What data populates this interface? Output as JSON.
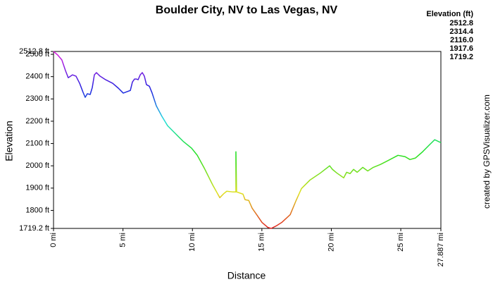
{
  "chart_data": {
    "type": "line",
    "title": "Boulder City, NV to Las Vegas, NV",
    "x_label": "Distance",
    "y_label": "Elevation",
    "credit": "created by GPSVisualizer.com",
    "x": [
      0,
      0.3,
      0.6,
      0.86,
      1.06,
      1.37,
      1.62,
      1.88,
      2.13,
      2.28,
      2.43,
      2.64,
      2.79,
      2.94,
      3.09,
      3.35,
      3.75,
      4.26,
      4.67,
      5.02,
      5.27,
      5.53,
      5.68,
      5.83,
      5.98,
      6.09,
      6.24,
      6.39,
      6.54,
      6.69,
      6.9,
      7.1,
      7.4,
      7.81,
      8.21,
      8.72,
      9.33,
      9.94,
      10.35,
      10.85,
      11.46,
      11.97,
      12.27,
      12.47,
      12.88,
      13.13,
      13.13,
      13.18,
      13.64,
      13.79,
      14.05,
      14.3,
      14.66,
      15.01,
      15.42,
      15.67,
      16.02,
      16.43,
      17.04,
      17.44,
      17.85,
      18.46,
      19.22,
      19.88,
      20.08,
      20.39,
      20.89,
      21.1,
      21.35,
      21.6,
      21.86,
      22.26,
      22.62,
      23.02,
      23.53,
      24.04,
      24.8,
      25.31,
      25.66,
      26.06,
      26.57,
      27.08,
      27.44,
      27.887
    ],
    "values": [
      2512.8,
      2497,
      2475,
      2427,
      2395,
      2408,
      2402,
      2370,
      2329,
      2307,
      2323,
      2320,
      2351,
      2408,
      2418,
      2402,
      2386,
      2370,
      2348,
      2326,
      2332,
      2338,
      2376,
      2389,
      2389,
      2386,
      2408,
      2418,
      2402,
      2364,
      2357,
      2326,
      2269,
      2221,
      2180,
      2148,
      2110,
      2079,
      2047,
      1990,
      1914,
      1857,
      1876,
      1886,
      1883,
      1883,
      2063,
      1883,
      1873,
      1848,
      1845,
      1810,
      1778,
      1746,
      1724,
      1719.2,
      1730,
      1746,
      1781,
      1841,
      1898,
      1936,
      1968,
      2000,
      1984,
      1968,
      1946,
      1971,
      1965,
      1984,
      1971,
      1993,
      1977,
      1993,
      2006,
      2022,
      2047,
      2041,
      2028,
      2035,
      2063,
      2095,
      2117,
      2104
    ],
    "xlim": [
      0,
      27.887
    ],
    "xticks": [
      {
        "value": 0,
        "label": "0 mi"
      },
      {
        "value": 5,
        "label": "5 mi"
      },
      {
        "value": 10,
        "label": "10 mi"
      },
      {
        "value": 15,
        "label": "15 mi"
      },
      {
        "value": 20,
        "label": "20 mi"
      },
      {
        "value": 25,
        "label": "25 mi"
      },
      {
        "value": 27.887,
        "label": "27.887 mi"
      }
    ],
    "ylim": [
      1719.2,
      2512.8
    ],
    "yticks": [
      {
        "value": 1719.2,
        "label": "1719.2 ft"
      },
      {
        "value": 1800,
        "label": "1800 ft"
      },
      {
        "value": 1900,
        "label": "1900 ft"
      },
      {
        "value": 2000,
        "label": "2000 ft"
      },
      {
        "value": 2100,
        "label": "2100 ft"
      },
      {
        "value": 2200,
        "label": "2200 ft"
      },
      {
        "value": 2300,
        "label": "2300 ft"
      },
      {
        "value": 2400,
        "label": "2400 ft"
      },
      {
        "value": 2500,
        "label": "2500 ft"
      },
      {
        "value": 2512.8,
        "label": "2512.8 ft"
      }
    ],
    "grid": false,
    "legend": {
      "title": "Elevation (ft)",
      "items": [
        {
          "value": 2512.8,
          "label": "2512.8",
          "color": "#e020e0"
        },
        {
          "value": 2314.4,
          "label": "2314.4",
          "color": "#2040e0"
        },
        {
          "value": 2116,
          "label": "2116.0",
          "color": "#20e060"
        },
        {
          "value": 1917.6,
          "label": "1917.6",
          "color": "#b0e020"
        },
        {
          "value": 1719.2,
          "label": "1719.2",
          "color": "#e02020"
        }
      ]
    }
  }
}
